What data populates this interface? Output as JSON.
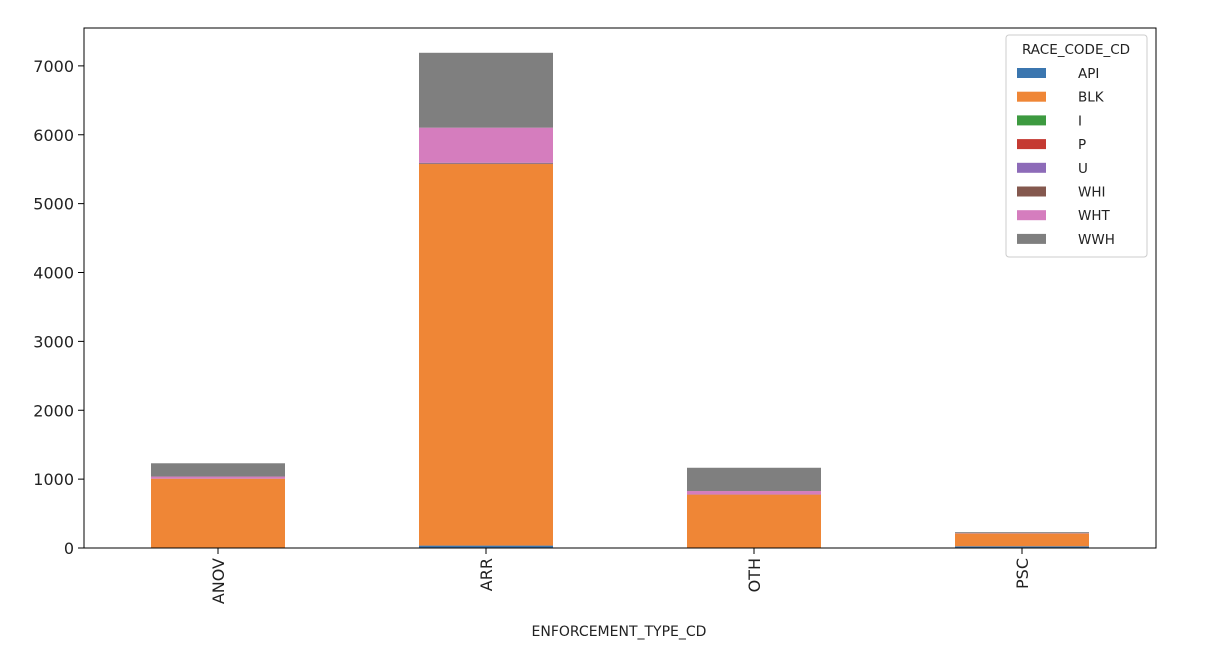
{
  "chart_data": {
    "type": "bar",
    "stacked": true,
    "xlabel": "ENFORCEMENT_TYPE_CD",
    "ylabel": "",
    "categories": [
      "ANOV",
      "ARR",
      "OTH",
      "PSC"
    ],
    "ylim": [
      0,
      7550
    ],
    "yticks": [
      0,
      1000,
      2000,
      3000,
      4000,
      5000,
      6000,
      7000
    ],
    "grid": false,
    "legend": {
      "title": "RACE_CODE_CD",
      "position": "top-right"
    },
    "series": [
      {
        "name": "API",
        "color": "#3b76af",
        "values": [
          5,
          35,
          5,
          25
        ]
      },
      {
        "name": "BLK",
        "color": "#ef8636",
        "values": [
          1000,
          5540,
          770,
          185
        ]
      },
      {
        "name": "I",
        "color": "#3d9a40",
        "values": [
          0,
          2,
          0,
          0
        ]
      },
      {
        "name": "P",
        "color": "#c53a32",
        "values": [
          0,
          1,
          0,
          0
        ]
      },
      {
        "name": "U",
        "color": "#8d6bb8",
        "values": [
          0,
          5,
          0,
          0
        ]
      },
      {
        "name": "WHI",
        "color": "#84584e",
        "values": [
          2,
          10,
          2,
          0
        ]
      },
      {
        "name": "WHT",
        "color": "#d57dbe",
        "values": [
          30,
          510,
          50,
          5
        ]
      },
      {
        "name": "WWH",
        "color": "#7f7f7f",
        "values": [
          193,
          1087,
          338,
          15
        ]
      }
    ]
  }
}
